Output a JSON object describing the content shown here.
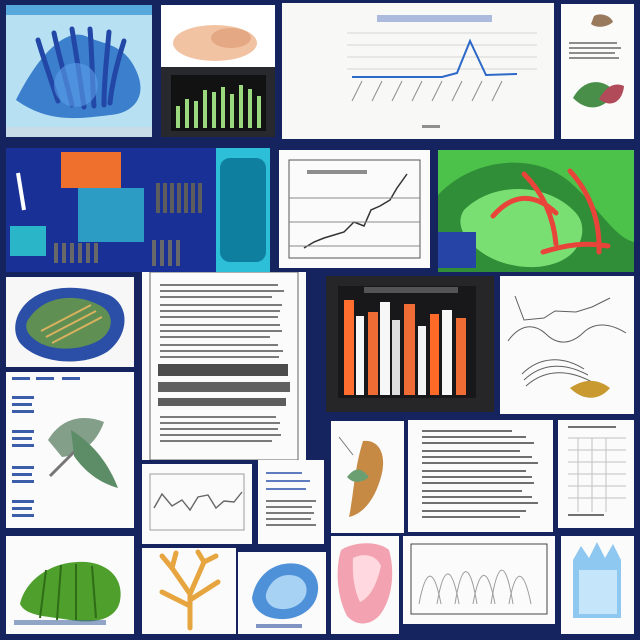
{
  "colors": {
    "background": "#15235e",
    "paper": "#f6f6f4",
    "blue": "#2f73c9",
    "green": "#3fa43d",
    "orange": "#e86a3a",
    "red": "#d94c4c",
    "dark": "#28292f"
  }
}
